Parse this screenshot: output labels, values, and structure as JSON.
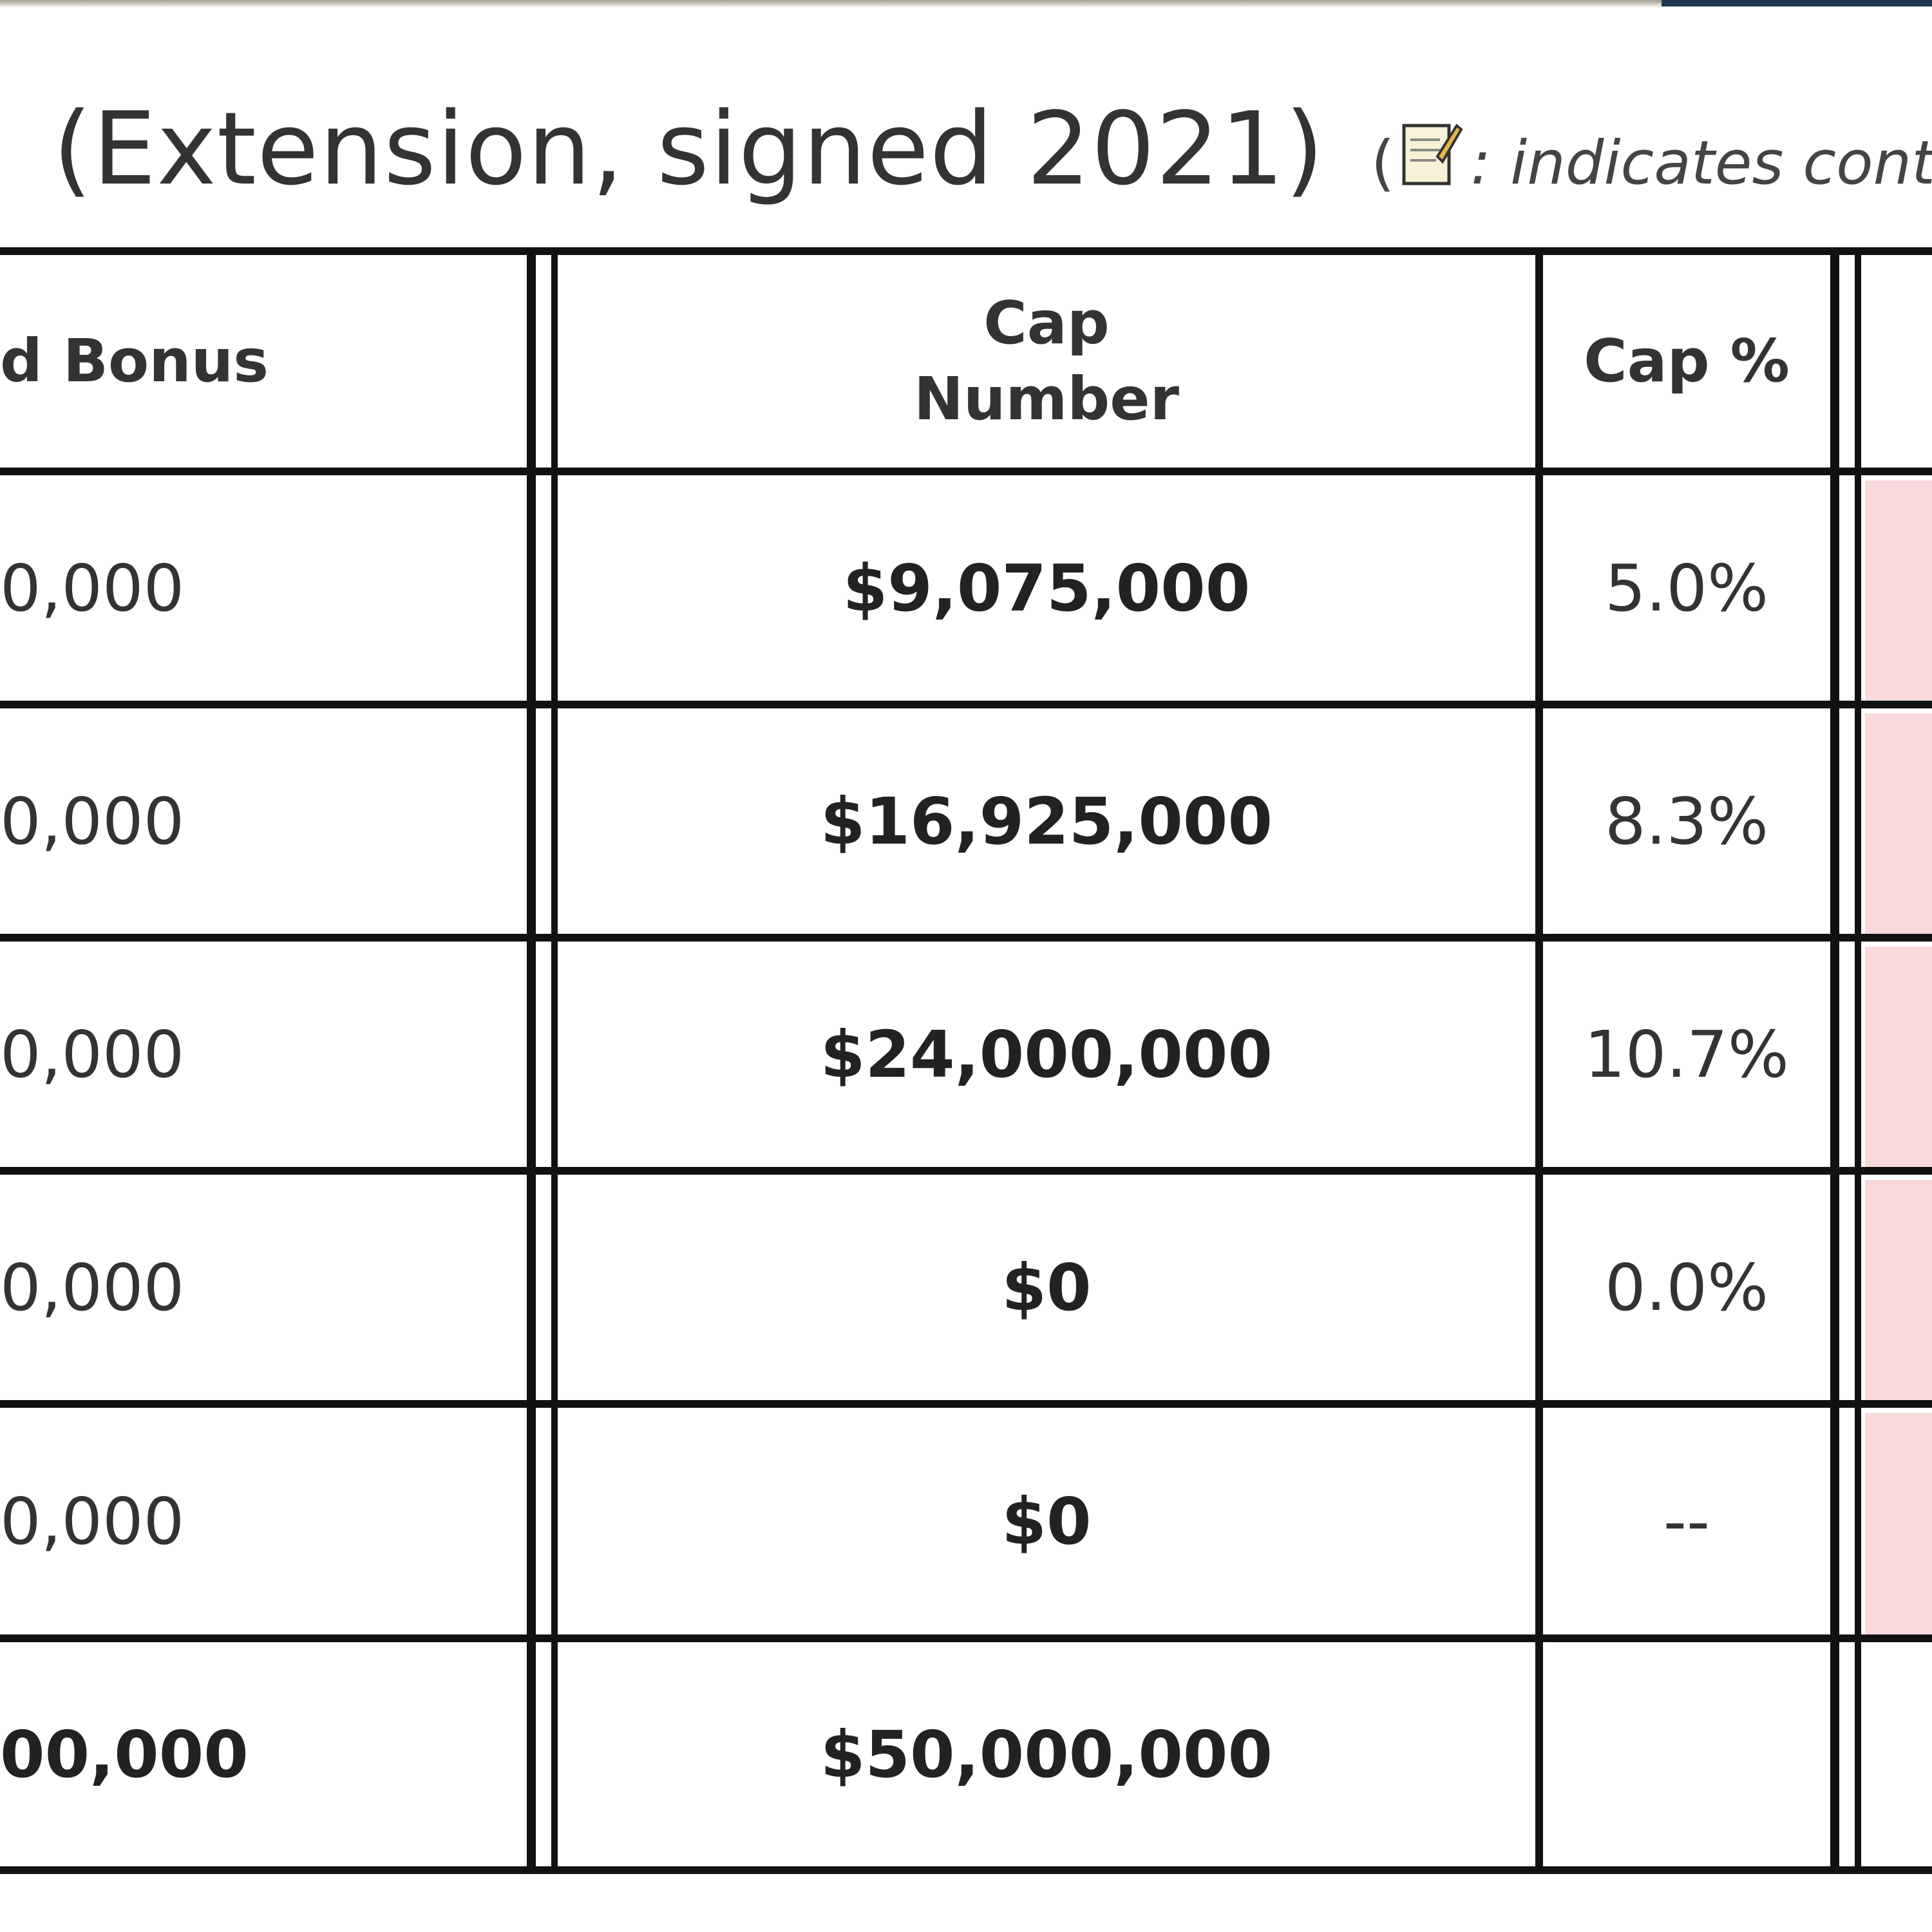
{
  "heading": {
    "title": "(Extension, signed 2021)",
    "legend_open": "(",
    "legend_icon": "contract-note-icon",
    "legend_text": ": indicates contra"
  },
  "table": {
    "columns": [
      "d Bonus",
      "Cap Number",
      "Cap %"
    ],
    "cap_number_header": {
      "line1": "Cap",
      "line2": "Number"
    },
    "rows": [
      {
        "bonus": "0,000",
        "cap_number": "$9,075,000",
        "cap_pct": "5.0%"
      },
      {
        "bonus": "0,000",
        "cap_number": "$16,925,000",
        "cap_pct": "8.3%"
      },
      {
        "bonus": "0,000",
        "cap_number": "$24,000,000",
        "cap_pct": "10.7%"
      },
      {
        "bonus": "0,000",
        "cap_number": "$0",
        "cap_pct": "0.0%"
      },
      {
        "bonus": "0,000",
        "cap_number": "$0",
        "cap_pct": "--"
      }
    ],
    "total": {
      "bonus": "00,000",
      "cap_number": "$50,000,000",
      "cap_pct": ""
    }
  },
  "colors": {
    "highlight": "#f9d9dc",
    "border": "#111111",
    "text": "#333333"
  }
}
